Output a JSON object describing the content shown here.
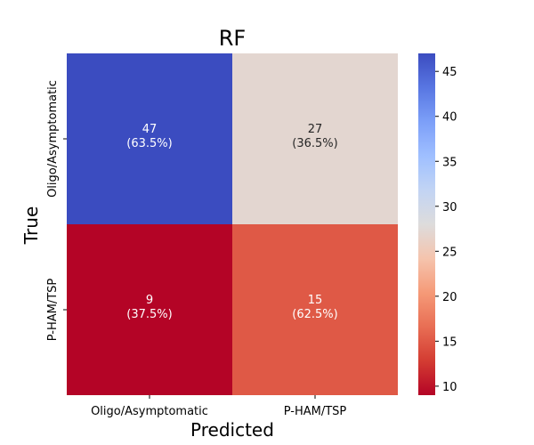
{
  "chart_data": {
    "type": "heatmap",
    "title": "RF",
    "xlabel": "Predicted",
    "ylabel": "True",
    "x_categories": [
      "Oligo/Asymptomatic",
      "P-HAM/TSP"
    ],
    "y_categories": [
      "Oligo/Asymptomatic",
      "P-HAM/TSP"
    ],
    "cells": [
      [
        {
          "value": 47,
          "percent_label": "(63.5%)"
        },
        {
          "value": 27,
          "percent_label": "(36.5%)"
        }
      ],
      [
        {
          "value": 9,
          "percent_label": "(37.5%)"
        },
        {
          "value": 15,
          "percent_label": "(62.5%)"
        }
      ]
    ],
    "colormap": "coolwarm_r",
    "color_min": 9,
    "color_max": 47,
    "colorbar_ticks": [
      10,
      15,
      20,
      25,
      30,
      35,
      40,
      45
    ]
  }
}
